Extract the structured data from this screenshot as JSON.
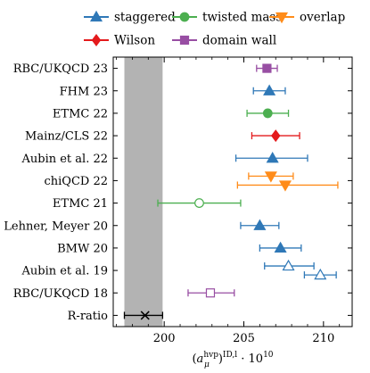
{
  "chart_data": {
    "type": "scatter",
    "xlabel": "(a_μ^hvp)^ID,l · 10^10",
    "xlabel_parts": {
      "open": "(",
      "a": "a",
      "sup": "hvp",
      "sub": "μ",
      "close": ")",
      "sup2": "ID,l",
      "times": " · 10",
      "exp": "10"
    },
    "xlim": [
      196.8,
      211.8
    ],
    "xticks": [
      200,
      205,
      210
    ],
    "xtick_labels": [
      "200",
      "205",
      "210"
    ],
    "categories": [
      "RBC/UKQCD 23",
      "FHM 23",
      "ETMC 22",
      "Mainz/CLS 22",
      "Aubin et al. 22",
      "chiQCD 22",
      "ETMC 21",
      "Lehner, Meyer 20",
      "BMW 20",
      "Aubin et al. 19",
      "RBC/UKQCD 18",
      "R-ratio"
    ],
    "shaded_band": {
      "x_from": 197.5,
      "x_to": 199.9,
      "color": "#b3b3b3"
    },
    "legend": [
      {
        "name": "staggered",
        "marker": "triangle-up",
        "color": "#2f78b7"
      },
      {
        "name": "twisted mass",
        "marker": "circle",
        "color": "#4caf50"
      },
      {
        "name": "overlap",
        "marker": "triangle-down",
        "color": "#ff8c1a"
      },
      {
        "name": "Wilson",
        "marker": "diamond",
        "color": "#e41a1c"
      },
      {
        "name": "domain wall",
        "marker": "square",
        "color": "#984ea3"
      }
    ],
    "points": [
      {
        "category": "RBC/UKQCD 23",
        "x": 206.45,
        "low": 205.8,
        "high": 207.1,
        "marker": "square",
        "color": "#984ea3",
        "filled": true,
        "offset": 0
      },
      {
        "category": "FHM 23",
        "x": 206.6,
        "low": 205.6,
        "high": 207.6,
        "marker": "triangle-up",
        "color": "#2f78b7",
        "filled": true,
        "offset": 0
      },
      {
        "category": "ETMC 22",
        "x": 206.5,
        "low": 205.2,
        "high": 207.8,
        "marker": "circle",
        "color": "#4caf50",
        "filled": true,
        "offset": 0
      },
      {
        "category": "Mainz/CLS 22",
        "x": 207.0,
        "low": 205.5,
        "high": 208.5,
        "marker": "diamond",
        "color": "#e41a1c",
        "filled": true,
        "offset": 0
      },
      {
        "category": "Aubin et al. 22",
        "x": 206.8,
        "low": 204.5,
        "high": 209.0,
        "marker": "triangle-up",
        "color": "#2f78b7",
        "filled": true,
        "offset": 0
      },
      {
        "category": "chiQCD 22",
        "x": 206.7,
        "low": 205.3,
        "high": 208.1,
        "marker": "triangle-down",
        "color": "#ff8c1a",
        "filled": true,
        "offset": -0.2
      },
      {
        "category": "chiQCD 22",
        "x": 207.6,
        "low": 204.6,
        "high": 210.9,
        "marker": "triangle-down",
        "color": "#ff8c1a",
        "filled": true,
        "offset": 0.2
      },
      {
        "category": "ETMC 21",
        "x": 202.2,
        "low": 199.6,
        "high": 204.8,
        "marker": "circle",
        "color": "#4caf50",
        "filled": false,
        "offset": 0
      },
      {
        "category": "Lehner, Meyer 20",
        "x": 206.0,
        "low": 204.8,
        "high": 207.2,
        "marker": "triangle-up",
        "color": "#2f78b7",
        "filled": true,
        "offset": 0
      },
      {
        "category": "BMW 20",
        "x": 207.3,
        "low": 206.0,
        "high": 208.6,
        "marker": "triangle-up",
        "color": "#2f78b7",
        "filled": true,
        "offset": 0
      },
      {
        "category": "Aubin et al. 19",
        "x": 207.8,
        "low": 206.3,
        "high": 209.4,
        "marker": "triangle-up",
        "color": "#2f78b7",
        "filled": false,
        "offset": -0.2
      },
      {
        "category": "Aubin et al. 19",
        "x": 209.8,
        "low": 208.8,
        "high": 210.8,
        "marker": "triangle-up",
        "color": "#2f78b7",
        "filled": false,
        "offset": 0.2
      },
      {
        "category": "RBC/UKQCD 18",
        "x": 202.9,
        "low": 201.5,
        "high": 204.4,
        "marker": "square",
        "color": "#984ea3",
        "filled": false,
        "offset": 0
      },
      {
        "category": "R-ratio",
        "x": 198.8,
        "low": 197.5,
        "high": 199.9,
        "marker": "cross",
        "color": "#000000",
        "filled": true,
        "offset": 0
      }
    ]
  }
}
